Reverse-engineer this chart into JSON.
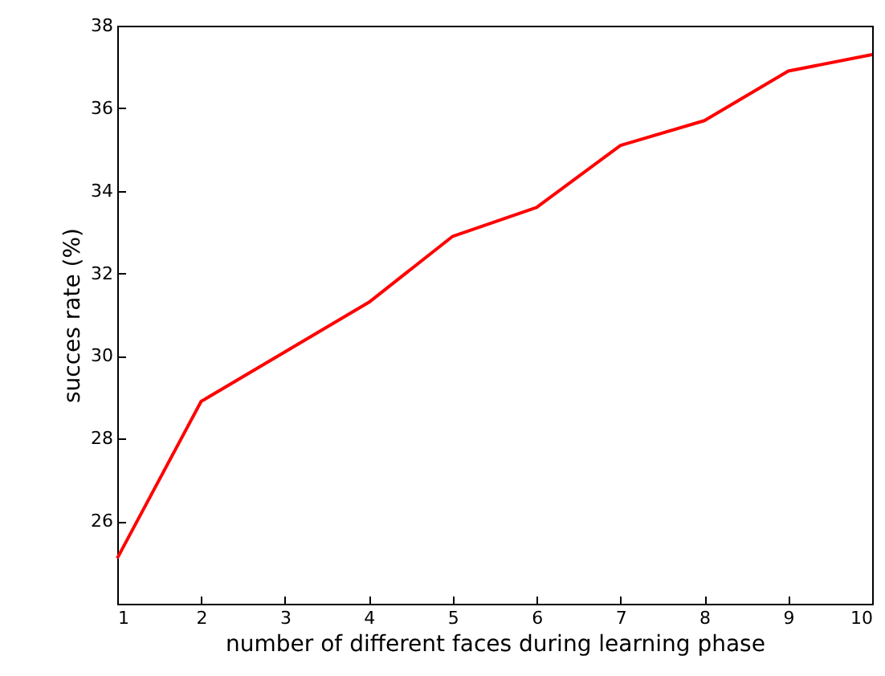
{
  "chart_data": {
    "type": "line",
    "xlabel": "number of different faces during learning phase",
    "ylabel": "succes rate (%)",
    "x": [
      1,
      2,
      3,
      4,
      5,
      6,
      7,
      8,
      9,
      10
    ],
    "series": [
      {
        "color": "#ff0000",
        "values": [
          25.1,
          28.9,
          30.1,
          31.3,
          32.9,
          33.6,
          35.1,
          35.7,
          36.9,
          37.3
        ]
      }
    ],
    "xlim": [
      1,
      10
    ],
    "xticks": [
      1,
      2,
      3,
      4,
      5,
      6,
      7,
      8,
      9,
      10
    ],
    "ylim": [
      24,
      38
    ],
    "yticks": [
      26,
      28,
      30,
      32,
      34,
      36,
      38
    ],
    "grid": false,
    "marker": "none",
    "line_style": "solid"
  }
}
